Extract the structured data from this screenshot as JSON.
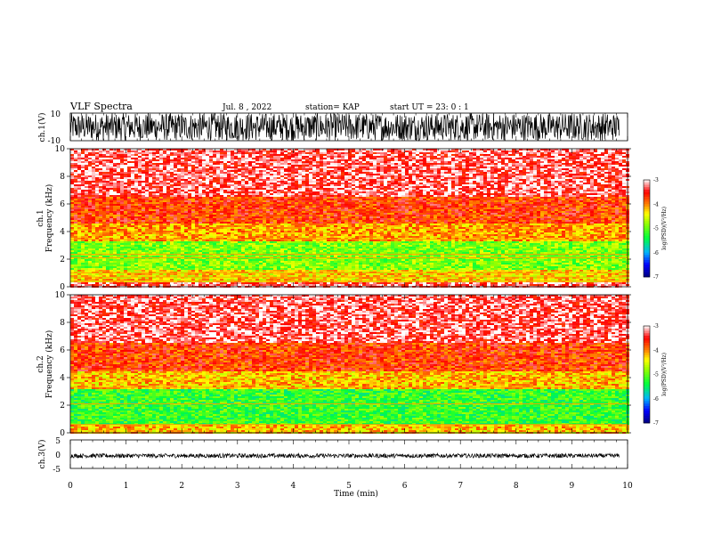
{
  "header": {
    "title": "VLF Spectra",
    "date": "Jul. 8 , 2022",
    "station": "station= KAP",
    "start": "start UT = 23: 0 : 1"
  },
  "chart_data": [
    {
      "type": "line",
      "panel": "ch1-waveform",
      "ylabel": "ch.1(V)",
      "ylim": [
        -10,
        10
      ],
      "ytick_labels": [
        "10",
        "-10"
      ],
      "xlim": [
        0,
        10
      ],
      "description_values": {
        "amplitude_range": [
          -10,
          10
        ],
        "data_end_min": 9.85
      }
    },
    {
      "type": "heatmap",
      "panel": "ch1-spectrogram",
      "ylabel_top": "ch.1",
      "ylabel": "Frequency (kHz)",
      "ylim": [
        0,
        10
      ],
      "ytick_labels": [
        "0",
        "2",
        "4",
        "6",
        "8",
        "10"
      ],
      "xlim": [
        0,
        10
      ],
      "colorbar": {
        "label": "log(PSD)(V²/Hz)",
        "range": [
          -7,
          -3
        ],
        "tick_labels": [
          "-3",
          "-4",
          "-5",
          "-6",
          "-7"
        ]
      },
      "bands_khz": [
        {
          "from": 0.3,
          "to": 1.2,
          "level": -4.3
        },
        {
          "from": 1.2,
          "to": 3.3,
          "level": -4.9
        },
        {
          "from": 3.3,
          "to": 4.6,
          "level": -4.1
        },
        {
          "from": 4.6,
          "to": 6.5,
          "level": -3.7
        },
        {
          "from": 6.5,
          "to": 10.0,
          "level": -3.3
        }
      ],
      "lines_khz": [
        0.4,
        0.7,
        1.0,
        2.1,
        2.35,
        3.45
      ]
    },
    {
      "type": "heatmap",
      "panel": "ch2-spectrogram",
      "ylabel_top": "ch.2",
      "ylabel": "Frequency (kHz)",
      "ylim": [
        0,
        10
      ],
      "ytick_labels": [
        "0",
        "2",
        "4",
        "6",
        "8",
        "10"
      ],
      "xlim": [
        0,
        10
      ],
      "colorbar": {
        "label": "log(PSD)(V²/Hz)",
        "range": [
          -7,
          -3
        ],
        "tick_labels": [
          "-3",
          "-4",
          "-5",
          "-6",
          "-7"
        ]
      },
      "bands_khz": [
        {
          "from": 0.0,
          "to": 0.6,
          "level": -4.2
        },
        {
          "from": 0.6,
          "to": 3.1,
          "level": -5.2
        },
        {
          "from": 3.1,
          "to": 4.5,
          "level": -4.2
        },
        {
          "from": 4.5,
          "to": 6.5,
          "level": -3.7
        },
        {
          "from": 6.5,
          "to": 10.0,
          "level": -3.3
        }
      ],
      "lines_khz": [
        0.6,
        2.1,
        3.3
      ]
    },
    {
      "type": "line",
      "panel": "ch3-waveform",
      "ylabel": "ch.3(V)",
      "ylim": [
        -5,
        5
      ],
      "ytick_labels": [
        "5",
        "0",
        "-5"
      ],
      "xlim": [
        0,
        10
      ],
      "xlabel": "Time (min)",
      "xtick_labels": [
        "0",
        "1",
        "2",
        "3",
        "4",
        "5",
        "6",
        "7",
        "8",
        "9",
        "10"
      ],
      "description_values": {
        "amplitude_range": [
          -1.3,
          0.2
        ],
        "data_end_min": 9.85
      }
    }
  ],
  "colors": {
    "black": "#000000",
    "scale": [
      "#000080",
      "#0000ff",
      "#00c0ff",
      "#00ff40",
      "#ffff00",
      "#ff8000",
      "#ff0000",
      "#ffffff"
    ]
  }
}
